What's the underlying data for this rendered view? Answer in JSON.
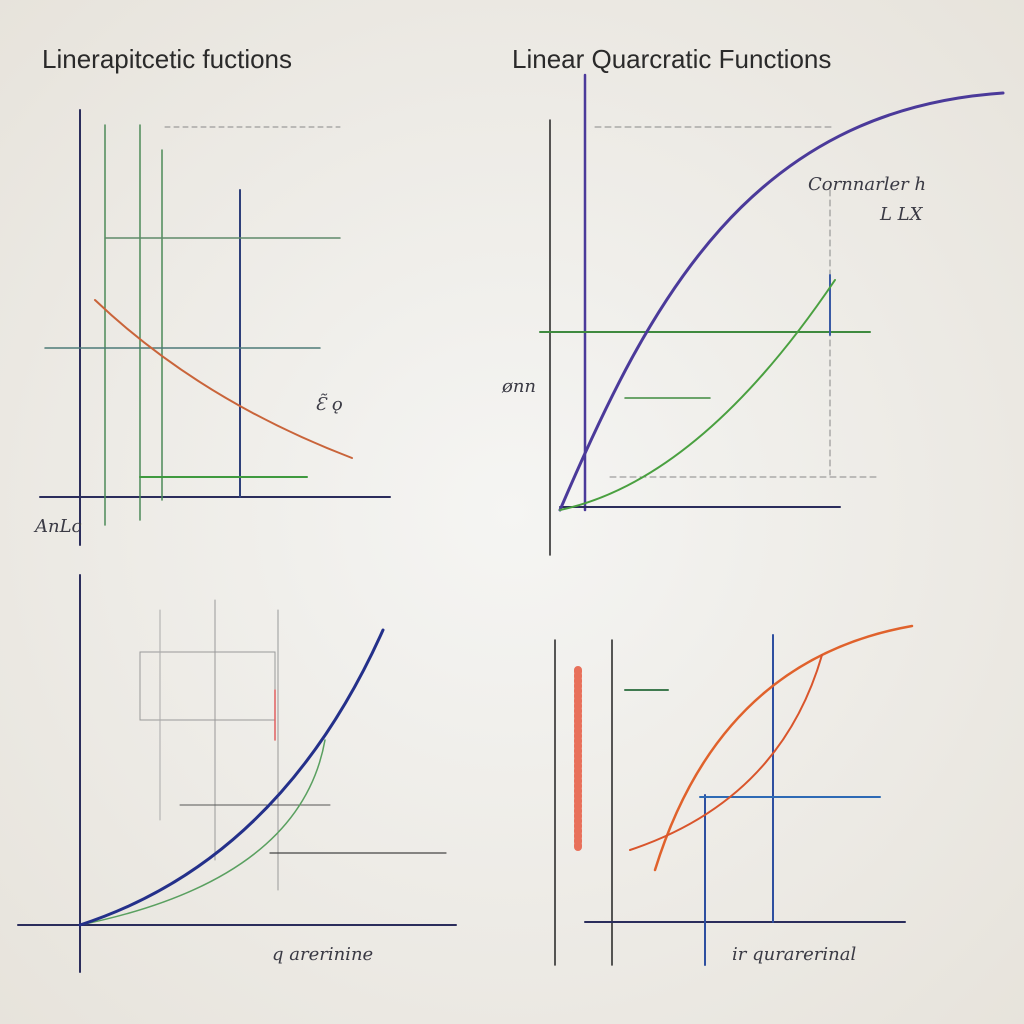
{
  "panels": [
    {
      "title": "Linerapitcetic fuctions",
      "labels": [
        "AnLc",
        "Ɛ̃ ǫ"
      ]
    },
    {
      "title": "Linear  Quarcratic Functions",
      "labels": [
        "Cornnarler h",
        "L LX",
        "ønn"
      ]
    },
    {
      "labels": [
        "q arerinine"
      ]
    },
    {
      "labels": [
        "ir qurarerinal"
      ]
    }
  ]
}
